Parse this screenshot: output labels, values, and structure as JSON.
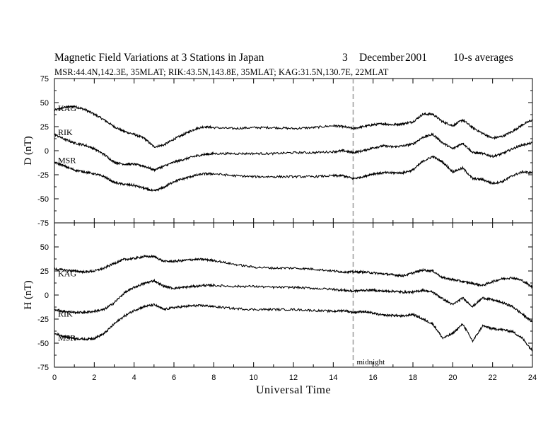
{
  "title": {
    "main": "Magnetic Field Variations at 3 Stations in Japan",
    "day": "3",
    "month": "December",
    "year": "2001",
    "averaging": "10-s averages"
  },
  "subtitle": "MSR:44.4N,142.3E, 35MLAT;  RIK:43.5N,143.8E, 35MLAT;  KAG:31.5N,130.7E, 22MLAT",
  "colors": {
    "trace": "#000000",
    "midnight_line": "#a0a0a0",
    "axes": "#000000"
  },
  "chart_data": [
    {
      "type": "line",
      "xlabel": "",
      "ylabel": "D (nT)",
      "xlim": [
        0,
        24
      ],
      "ylim": [
        -75,
        75
      ],
      "yticks": [
        -75,
        -50,
        -25,
        0,
        25,
        50,
        75
      ],
      "grid": false,
      "annotation": "",
      "series": [
        {
          "name": "KAG",
          "x": [
            0,
            0.5,
            1,
            1.5,
            2,
            2.5,
            3,
            3.5,
            4,
            4.5,
            5,
            5.5,
            6,
            6.5,
            7,
            7.5,
            8,
            9,
            10,
            11,
            12,
            13,
            14,
            14.5,
            15,
            15.5,
            16,
            16.5,
            17,
            17.5,
            18,
            18.5,
            19,
            19.5,
            20,
            20.5,
            21,
            21.5,
            22,
            22.5,
            23,
            23.5,
            24
          ],
          "values": [
            42,
            45,
            46,
            43,
            38,
            32,
            25,
            20,
            17,
            13,
            4,
            6,
            12,
            17,
            22,
            25,
            24,
            23,
            24,
            24,
            23,
            24,
            26,
            25,
            23,
            25,
            27,
            28,
            27,
            28,
            30,
            38,
            38,
            30,
            26,
            32,
            24,
            18,
            13,
            15,
            20,
            27,
            32
          ]
        },
        {
          "name": "RIK",
          "x": [
            0,
            0.5,
            1,
            1.5,
            2,
            2.5,
            3,
            3.5,
            4,
            4.5,
            5,
            5.5,
            6,
            6.5,
            7,
            7.5,
            8,
            9,
            10,
            11,
            12,
            13,
            14,
            14.5,
            15,
            15.5,
            16,
            16.5,
            17,
            17.5,
            18,
            18.5,
            19,
            19.5,
            20,
            20.5,
            21,
            21.5,
            22,
            22.5,
            23,
            23.5,
            24
          ],
          "values": [
            17,
            12,
            8,
            6,
            2,
            -4,
            -12,
            -14,
            -14,
            -16,
            -20,
            -16,
            -12,
            -9,
            -6,
            -4,
            -3,
            -3,
            -3,
            -3,
            -2,
            -2,
            -1,
            0,
            -2,
            0,
            3,
            5,
            4,
            5,
            7,
            14,
            17,
            8,
            2,
            8,
            -2,
            -3,
            -6,
            -3,
            2,
            6,
            8
          ]
        },
        {
          "name": "MSR",
          "x": [
            0,
            0.5,
            1,
            1.5,
            2,
            2.5,
            3,
            3.5,
            4,
            4.5,
            5,
            5.5,
            6,
            6.5,
            7,
            7.5,
            8,
            9,
            10,
            11,
            12,
            13,
            14,
            14.5,
            15,
            15.5,
            16,
            16.5,
            17,
            17.5,
            18,
            18.5,
            19,
            19.5,
            20,
            20.5,
            21,
            21.5,
            22,
            22.5,
            23,
            23.5,
            24
          ],
          "values": [
            -12,
            -16,
            -20,
            -22,
            -24,
            -27,
            -33,
            -35,
            -36,
            -39,
            -42,
            -38,
            -32,
            -29,
            -26,
            -24,
            -24,
            -26,
            -27,
            -27,
            -27,
            -27,
            -26,
            -26,
            -29,
            -27,
            -24,
            -23,
            -23,
            -23,
            -20,
            -11,
            -6,
            -12,
            -22,
            -18,
            -29,
            -30,
            -34,
            -32,
            -26,
            -22,
            -23
          ]
        }
      ]
    },
    {
      "type": "line",
      "xlabel": "Universal Time",
      "ylabel": "H (nT)",
      "xlim": [
        0,
        24
      ],
      "ylim": [
        -75,
        75
      ],
      "xticks": [
        0,
        2,
        4,
        6,
        8,
        10,
        12,
        14,
        16,
        18,
        20,
        22,
        24
      ],
      "yticks": [
        -75,
        -50,
        -25,
        0,
        25,
        50,
        75
      ],
      "grid": false,
      "annotation": "midnight",
      "series": [
        {
          "name": "KAG",
          "x": [
            0,
            0.5,
            1,
            1.5,
            2,
            2.5,
            3,
            3.5,
            4,
            4.5,
            5,
            5.5,
            6,
            6.5,
            7,
            7.5,
            8,
            9,
            10,
            11,
            12,
            13,
            14,
            14.5,
            15,
            15.5,
            16,
            16.5,
            17,
            17.5,
            18,
            18.5,
            19,
            19.5,
            20,
            20.5,
            21,
            21.5,
            22,
            22.5,
            23,
            23.5,
            24
          ],
          "values": [
            27,
            26,
            25,
            24,
            25,
            28,
            33,
            37,
            38,
            40,
            40,
            35,
            35,
            36,
            37,
            37,
            36,
            32,
            29,
            28,
            28,
            27,
            25,
            24,
            24,
            24,
            23,
            22,
            21,
            20,
            23,
            26,
            25,
            18,
            16,
            14,
            12,
            10,
            14,
            17,
            18,
            15,
            8
          ]
        },
        {
          "name": "RIK",
          "x": [
            0,
            0.5,
            1,
            1.5,
            2,
            2.5,
            3,
            3.5,
            4,
            4.5,
            5,
            5.5,
            6,
            6.5,
            7,
            7.5,
            8,
            9,
            10,
            11,
            12,
            13,
            14,
            14.5,
            15,
            15.5,
            16,
            16.5,
            17,
            17.5,
            18,
            18.5,
            19,
            19.5,
            20,
            20.5,
            21,
            21.5,
            22,
            22.5,
            23,
            23.5,
            24
          ],
          "values": [
            -15,
            -17,
            -18,
            -18,
            -17,
            -15,
            -8,
            2,
            8,
            12,
            15,
            9,
            7,
            8,
            9,
            10,
            10,
            9,
            9,
            8,
            8,
            7,
            6,
            5,
            4,
            5,
            5,
            4,
            4,
            3,
            3,
            5,
            3,
            -4,
            -10,
            -3,
            -12,
            -3,
            -5,
            -8,
            -12,
            -20,
            -28
          ]
        },
        {
          "name": "MSR",
          "x": [
            0,
            0.5,
            1,
            1.5,
            2,
            2.5,
            3,
            3.5,
            4,
            4.5,
            5,
            5.5,
            6,
            6.5,
            7,
            7.5,
            8,
            9,
            10,
            11,
            12,
            13,
            14,
            14.5,
            15,
            15.5,
            16,
            16.5,
            17,
            17.5,
            18,
            18.5,
            19,
            19.5,
            20,
            20.5,
            21,
            21.5,
            22,
            22.5,
            23,
            23.5,
            24
          ],
          "values": [
            -40,
            -43,
            -45,
            -46,
            -45,
            -40,
            -30,
            -22,
            -16,
            -12,
            -10,
            -15,
            -13,
            -12,
            -11,
            -11,
            -12,
            -14,
            -15,
            -15,
            -15,
            -16,
            -17,
            -16,
            -18,
            -17,
            -19,
            -21,
            -21,
            -22,
            -20,
            -25,
            -30,
            -45,
            -40,
            -30,
            -48,
            -32,
            -35,
            -36,
            -38,
            -45,
            -58
          ]
        }
      ]
    }
  ]
}
